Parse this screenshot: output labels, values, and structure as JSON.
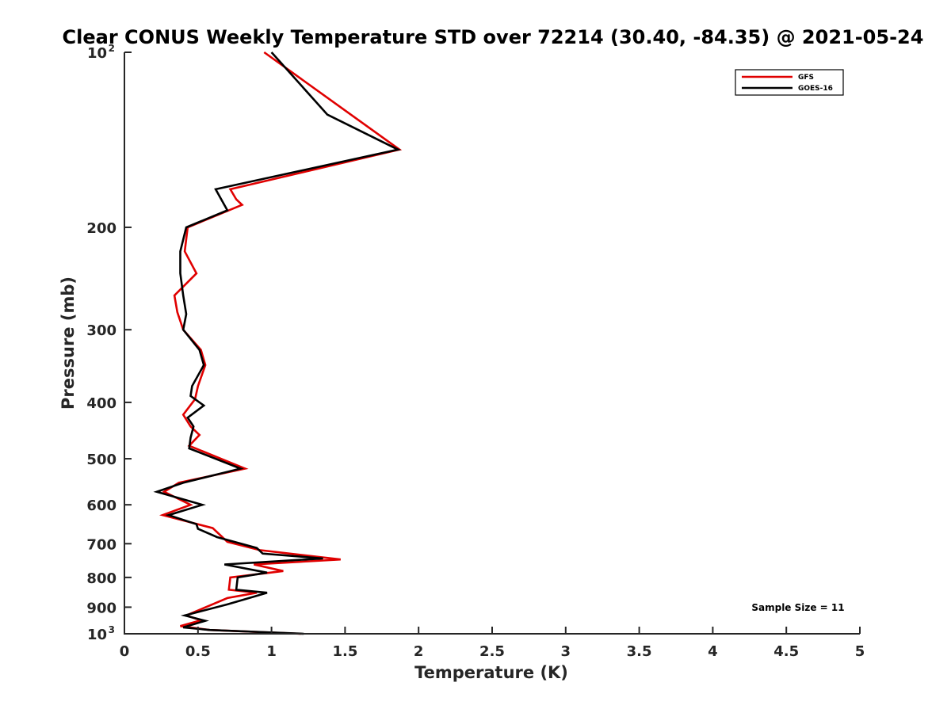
{
  "chart_data": {
    "type": "line",
    "title": "Clear CONUS Weekly Temperature STD over 72214 (30.40, -84.35) @ 2021-05-24",
    "xlabel": "Temperature (K)",
    "ylabel": "Pressure (mb)",
    "xlim": [
      0,
      5
    ],
    "ylim": [
      100,
      1000
    ],
    "yscale": "log",
    "y_reversed": true,
    "grid": false,
    "x_ticks": [
      "0",
      "0.5",
      "1",
      "1.5",
      "2",
      "2.5",
      "3",
      "3.5",
      "4",
      "4.5",
      "5"
    ],
    "y_ticks": [
      {
        "value": 100,
        "base": "10",
        "exp": "2"
      },
      {
        "value": 200,
        "label": "200"
      },
      {
        "value": 300,
        "label": "300"
      },
      {
        "value": 400,
        "label": "400"
      },
      {
        "value": 500,
        "label": "500"
      },
      {
        "value": 600,
        "label": "600"
      },
      {
        "value": 700,
        "label": "700"
      },
      {
        "value": 800,
        "label": "800"
      },
      {
        "value": 900,
        "label": "900"
      },
      {
        "value": 1000,
        "base": "10",
        "exp": "3"
      }
    ],
    "legend_position": "top-right",
    "annotation": "Sample Size = 11",
    "series": [
      {
        "name": "GFS",
        "color": "#e00000",
        "points": [
          [
            0.95,
            100
          ],
          [
            1.87,
            147
          ],
          [
            0.72,
            172
          ],
          [
            0.76,
            179
          ],
          [
            0.8,
            183
          ],
          [
            0.43,
            200
          ],
          [
            0.41,
            220
          ],
          [
            0.49,
            240
          ],
          [
            0.34,
            262
          ],
          [
            0.36,
            280
          ],
          [
            0.4,
            300
          ],
          [
            0.52,
            325
          ],
          [
            0.55,
            345
          ],
          [
            0.5,
            375
          ],
          [
            0.48,
            395
          ],
          [
            0.4,
            420
          ],
          [
            0.45,
            440
          ],
          [
            0.51,
            455
          ],
          [
            0.44,
            475
          ],
          [
            0.82,
            520
          ],
          [
            0.37,
            550
          ],
          [
            0.27,
            570
          ],
          [
            0.45,
            600
          ],
          [
            0.26,
            625
          ],
          [
            0.6,
            658
          ],
          [
            0.7,
            695
          ],
          [
            0.92,
            718
          ],
          [
            1.47,
            745
          ],
          [
            0.88,
            760
          ],
          [
            1.08,
            780
          ],
          [
            0.72,
            800
          ],
          [
            0.71,
            840
          ],
          [
            0.9,
            850
          ],
          [
            0.7,
            868
          ],
          [
            0.42,
            930
          ],
          [
            0.52,
            948
          ],
          [
            0.38,
            970
          ],
          [
            0.58,
            985
          ],
          [
            1.2,
            1000
          ]
        ]
      },
      {
        "name": "GOES-16",
        "color": "#000000",
        "points": [
          [
            1.0,
            100
          ],
          [
            1.38,
            128
          ],
          [
            1.86,
            147
          ],
          [
            0.62,
            172
          ],
          [
            0.7,
            187
          ],
          [
            0.42,
            200
          ],
          [
            0.38,
            220
          ],
          [
            0.38,
            240
          ],
          [
            0.4,
            262
          ],
          [
            0.42,
            282
          ],
          [
            0.4,
            300
          ],
          [
            0.51,
            325
          ],
          [
            0.54,
            345
          ],
          [
            0.46,
            375
          ],
          [
            0.45,
            390
          ],
          [
            0.54,
            405
          ],
          [
            0.43,
            425
          ],
          [
            0.47,
            440
          ],
          [
            0.45,
            460
          ],
          [
            0.44,
            480
          ],
          [
            0.79,
            520
          ],
          [
            0.4,
            550
          ],
          [
            0.22,
            570
          ],
          [
            0.53,
            600
          ],
          [
            0.3,
            625
          ],
          [
            0.49,
            648
          ],
          [
            0.5,
            660
          ],
          [
            0.63,
            682
          ],
          [
            0.9,
            712
          ],
          [
            0.94,
            728
          ],
          [
            1.35,
            742
          ],
          [
            0.68,
            760
          ],
          [
            0.97,
            785
          ],
          [
            0.77,
            800
          ],
          [
            0.76,
            840
          ],
          [
            0.97,
            850
          ],
          [
            0.7,
            890
          ],
          [
            0.41,
            930
          ],
          [
            0.55,
            950
          ],
          [
            0.4,
            975
          ],
          [
            0.58,
            985
          ],
          [
            1.22,
            1000
          ]
        ]
      }
    ]
  }
}
